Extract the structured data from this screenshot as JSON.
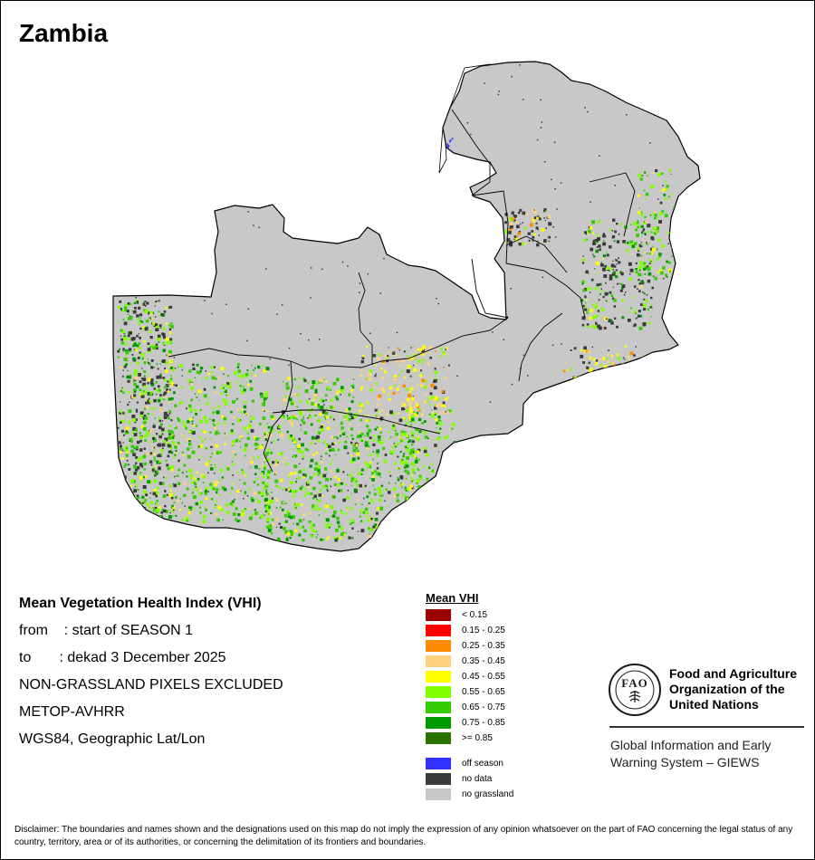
{
  "map": {
    "title": "Zambia",
    "colors": {
      "land": "#c8c8c8",
      "border": "#000000",
      "water": "#ffffff"
    }
  },
  "info": {
    "title": "Mean Vegetation Health Index (VHI)",
    "from": "from    : start of SEASON 1",
    "to": "to       : dekad 3 December 2025",
    "excluded": "NON-GRASSLAND PIXELS EXCLUDED",
    "sensor": "METOP-AVHRR",
    "projection": "WGS84, Geographic Lat/Lon"
  },
  "legend": {
    "title": "Mean VHI",
    "classes": [
      {
        "label": "< 0.15",
        "color": "#990000"
      },
      {
        "label": "0.15 - 0.25",
        "color": "#ff0000"
      },
      {
        "label": "0.25 - 0.35",
        "color": "#ff8c00"
      },
      {
        "label": "0.35 - 0.45",
        "color": "#ffd27f"
      },
      {
        "label": "0.45 - 0.55",
        "color": "#ffff00"
      },
      {
        "label": "0.55 - 0.65",
        "color": "#80ff00"
      },
      {
        "label": "0.65 - 0.75",
        "color": "#33cc00"
      },
      {
        "label": "0.75 - 0.85",
        "color": "#009900"
      },
      {
        "label": ">= 0.85",
        "color": "#2b7300"
      }
    ],
    "special": [
      {
        "label": "off season",
        "color": "#3333ff"
      },
      {
        "label": "no data",
        "color": "#3a3a3a"
      },
      {
        "label": "no grassland",
        "color": "#c8c8c8"
      }
    ]
  },
  "org": {
    "logo_letters": "FAO",
    "name": "Food and Agriculture Organization of the United Nations",
    "program": "Global Information and Early Warning System – GIEWS"
  },
  "disclaimer": "Disclaimer: The boundaries and names shown and the designations used on this map do not imply the expression of any opinion whatsoever on the part of FAO concerning the legal status of any country, territory, area or of its authorities, or concerning the delimitation of its frontiers and boundaries."
}
